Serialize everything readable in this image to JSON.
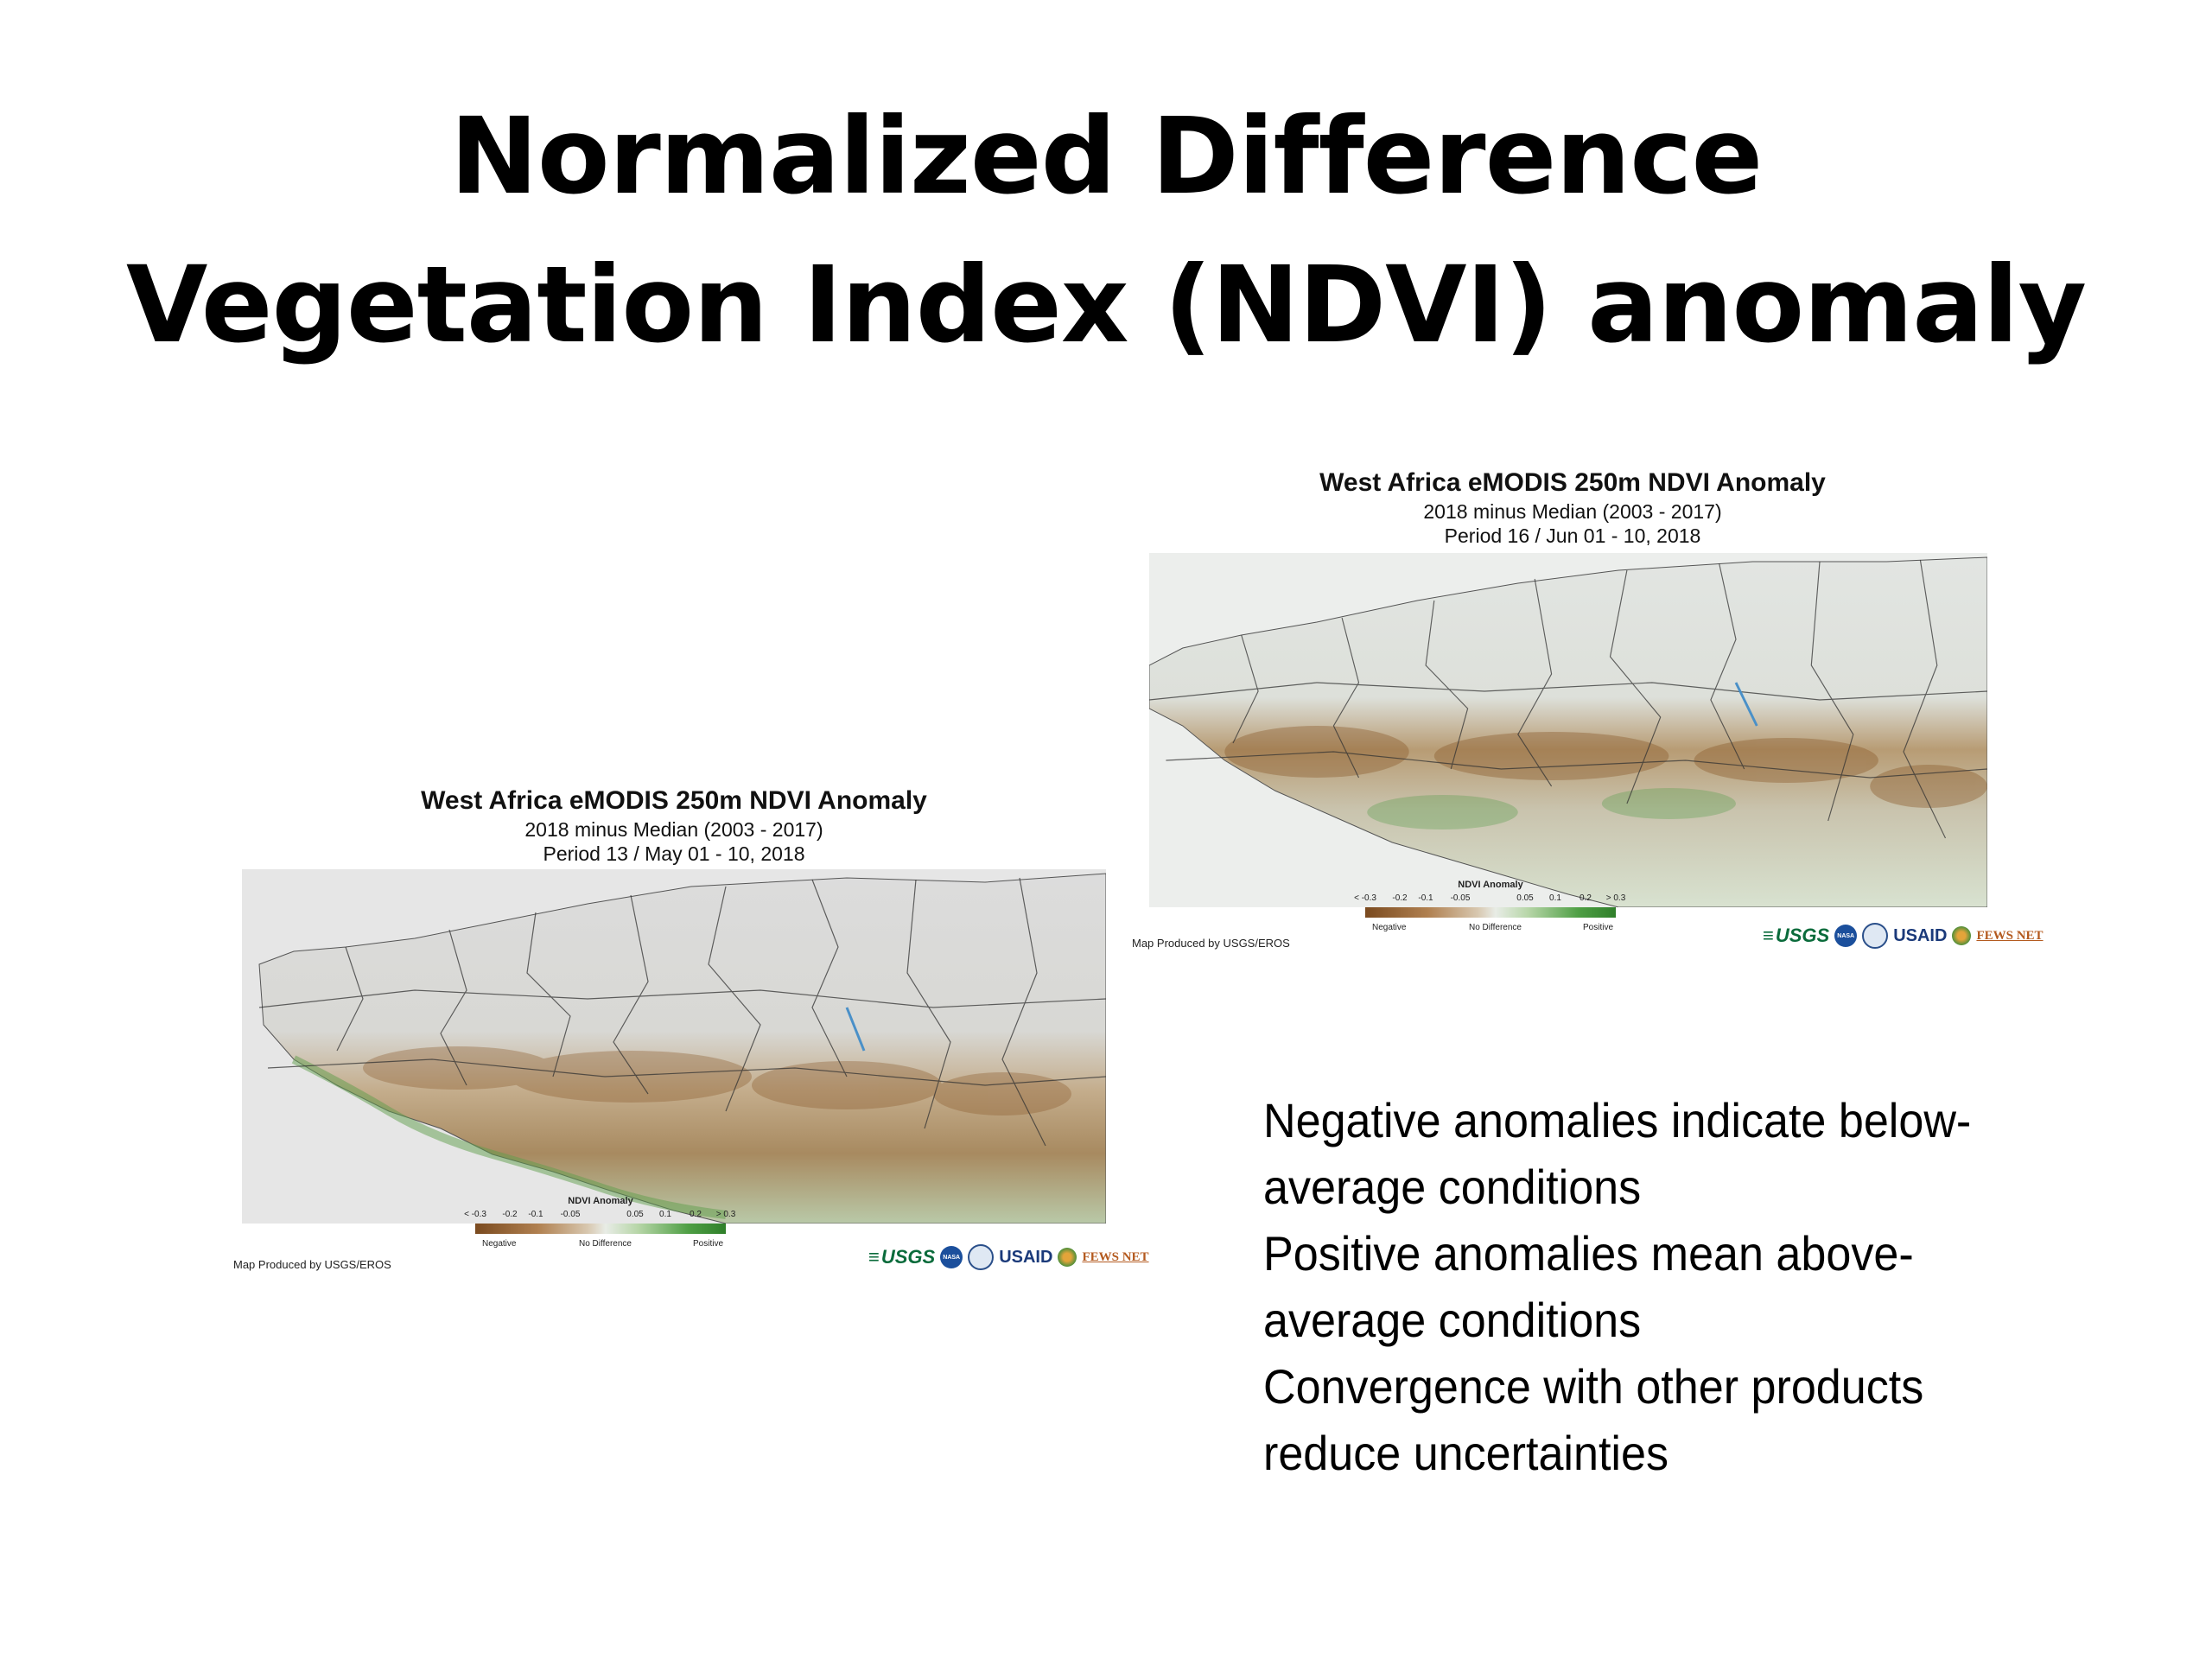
{
  "slide": {
    "title_line1": "Normalized Difference",
    "title_line2": "Vegetation Index (NDVI) anomaly"
  },
  "maps": [
    {
      "title": "West Africa eMODIS 250m NDVI Anomaly",
      "subtitle": "2018 minus Median (2003 - 2017)",
      "period": "Period 13 / May 01 - 10, 2018",
      "producer": "Map Produced by USGS/EROS"
    },
    {
      "title": "West Africa eMODIS 250m NDVI Anomaly",
      "subtitle": "2018 minus Median (2003 - 2017)",
      "period": "Period 16 / Jun 01 - 10, 2018",
      "producer": "Map Produced by USGS/EROS"
    }
  ],
  "legend": {
    "title": "NDVI Anomaly",
    "ticks": [
      "< -0.3",
      "-0.2",
      "-0.1",
      "-0.05",
      "0.05",
      "0.1",
      "0.2",
      "> 0.3"
    ],
    "negative": "Negative",
    "no_difference": "No Difference",
    "positive": "Positive"
  },
  "logos": {
    "usgs": "USGS",
    "nasa": "NASA",
    "usaid": "USAID",
    "fews": "FEWS NET"
  },
  "bullets": [
    "Negative anomalies indicate below-average conditions",
    "Positive anomalies mean above-average conditions",
    "Convergence with other products reduce uncertainties"
  ],
  "colors": {
    "negative": "#7a4a1f",
    "no_difference": "#e8ece6",
    "positive": "#2f7f2a"
  }
}
